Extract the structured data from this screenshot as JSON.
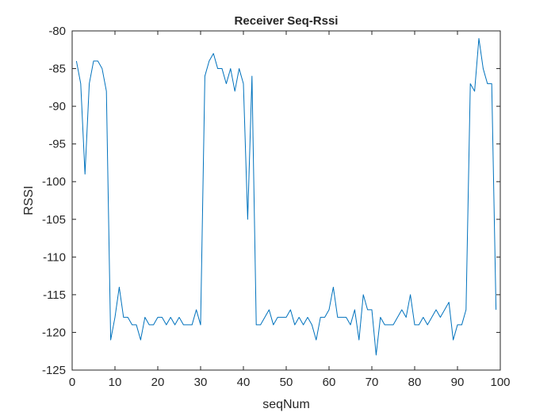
{
  "chart_data": {
    "type": "line",
    "title": "Receiver Seq-Rssi",
    "xlabel": "seqNum",
    "ylabel": "RSSI",
    "xlim": [
      0,
      100
    ],
    "ylim": [
      -125,
      -80
    ],
    "xticks": [
      0,
      10,
      20,
      30,
      40,
      50,
      60,
      70,
      80,
      90,
      100
    ],
    "yticks": [
      -125,
      -120,
      -115,
      -110,
      -105,
      -100,
      -95,
      -90,
      -85,
      -80
    ],
    "grid": false,
    "legend": "none",
    "series": [
      {
        "color": "#0072bd",
        "x": [
          1,
          2,
          3,
          4,
          5,
          6,
          7,
          8,
          9,
          10,
          11,
          12,
          13,
          14,
          15,
          16,
          17,
          18,
          19,
          20,
          21,
          22,
          23,
          24,
          25,
          26,
          27,
          28,
          29,
          30,
          31,
          32,
          33,
          34,
          35,
          36,
          37,
          38,
          39,
          40,
          41,
          42,
          43,
          44,
          45,
          46,
          47,
          48,
          49,
          50,
          51,
          52,
          53,
          54,
          55,
          56,
          57,
          58,
          59,
          60,
          61,
          62,
          63,
          64,
          65,
          66,
          67,
          68,
          69,
          70,
          71,
          72,
          73,
          74,
          75,
          76,
          77,
          78,
          79,
          80,
          81,
          82,
          83,
          84,
          85,
          86,
          87,
          88,
          89,
          90,
          91,
          92,
          93,
          94,
          95,
          96,
          97,
          98,
          99
        ],
        "y": [
          -84,
          -87,
          -99,
          -87,
          -84,
          -84,
          -85,
          -88,
          -121,
          -118,
          -114,
          -118,
          -118,
          -119,
          -119,
          -121,
          -118,
          -119,
          -119,
          -118,
          -118,
          -119,
          -118,
          -119,
          -118,
          -119,
          -119,
          -119,
          -117,
          -119,
          -86,
          -84,
          -83,
          -85,
          -85,
          -87,
          -85,
          -88,
          -85,
          -87,
          -105,
          -86,
          -119,
          -119,
          -118,
          -117,
          -119,
          -118,
          -118,
          -118,
          -117,
          -119,
          -118,
          -119,
          -118,
          -119,
          -121,
          -118,
          -118,
          -117,
          -114,
          -118,
          -118,
          -118,
          -119,
          -117,
          -121,
          -115,
          -117,
          -117,
          -123,
          -118,
          -119,
          -119,
          -119,
          -118,
          -117,
          -118,
          -115,
          -119,
          -119,
          -118,
          -119,
          -118,
          -117,
          -118,
          -117,
          -116,
          -121,
          -119,
          -119,
          -117,
          -87,
          -88,
          -81,
          -85,
          -87,
          -87,
          -117
        ]
      }
    ]
  }
}
